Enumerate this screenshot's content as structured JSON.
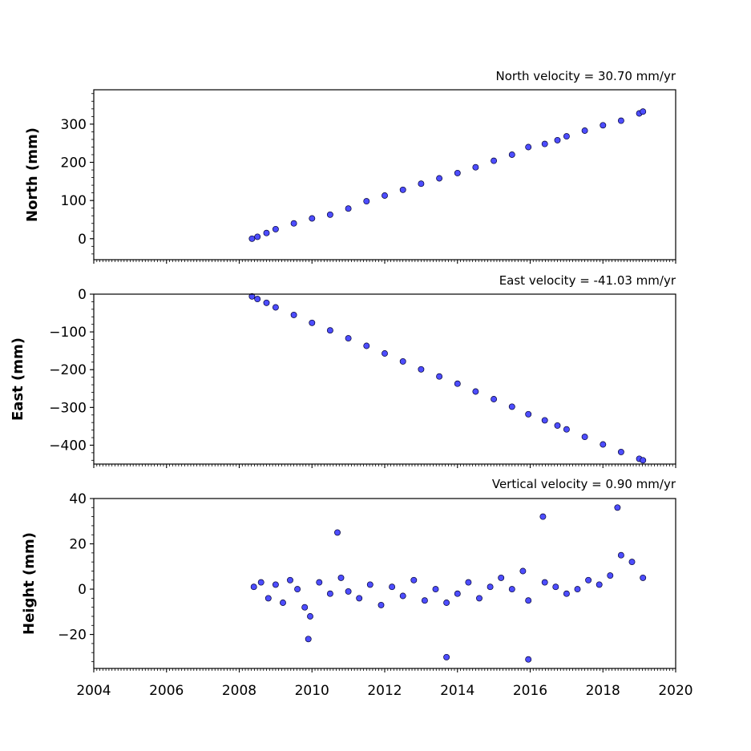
{
  "colors": {
    "marker_fill": "#4d4dff",
    "marker_edge": "#000033"
  },
  "chart_data": [
    {
      "type": "scatter",
      "title": "North velocity = 30.70 mm/yr",
      "ylabel": "North (mm)",
      "xlim": [
        2004,
        2020
      ],
      "ylim": [
        -55,
        390
      ],
      "yticks": [
        0,
        100,
        200,
        300
      ],
      "grid": false,
      "series": [
        {
          "x": [
            2008.35,
            2008.5,
            2008.75,
            2009.0,
            2009.5,
            2010.0,
            2010.5,
            2011.0,
            2011.5,
            2012.0,
            2012.5,
            2013.0,
            2013.5,
            2014.0,
            2014.5,
            2015.0,
            2015.5,
            2015.95,
            2016.4,
            2016.75,
            2017.0,
            2017.5,
            2018.0,
            2018.5,
            2019.0,
            2019.1
          ],
          "y": [
            0,
            5,
            15,
            25,
            40,
            53,
            63,
            79,
            98,
            113,
            128,
            144,
            158,
            172,
            187,
            204,
            220,
            240,
            248,
            258,
            268,
            283,
            297,
            309,
            328,
            333
          ]
        }
      ]
    },
    {
      "type": "scatter",
      "title": "East velocity = -41.03 mm/yr",
      "ylabel": "East (mm)",
      "xlim": [
        2004,
        2020
      ],
      "ylim": [
        -450,
        0
      ],
      "yticks": [
        0,
        -100,
        -200,
        -300,
        -400
      ],
      "grid": false,
      "series": [
        {
          "x": [
            2008.35,
            2008.5,
            2008.75,
            2009.0,
            2009.5,
            2010.0,
            2010.5,
            2011.0,
            2011.5,
            2012.0,
            2012.5,
            2013.0,
            2013.5,
            2014.0,
            2014.5,
            2015.0,
            2015.5,
            2015.95,
            2016.4,
            2016.75,
            2017.0,
            2017.5,
            2018.0,
            2018.5,
            2019.0,
            2019.1
          ],
          "y": [
            -6,
            -13,
            -23,
            -35,
            -55,
            -76,
            -96,
            -117,
            -137,
            -157,
            -178,
            -199,
            -218,
            -237,
            -258,
            -278,
            -298,
            -318,
            -334,
            -348,
            -358,
            -378,
            -398,
            -418,
            -436,
            -440
          ]
        }
      ]
    },
    {
      "type": "scatter",
      "title": "Vertical velocity = 0.90 mm/yr",
      "ylabel": "Height (mm)",
      "xlabel": "",
      "xlim": [
        2004,
        2020
      ],
      "ylim": [
        -35,
        40
      ],
      "yticks": [
        40,
        20,
        0,
        -20
      ],
      "xticks": [
        2004,
        2006,
        2008,
        2010,
        2012,
        2014,
        2016,
        2018,
        2020
      ],
      "grid": false,
      "series": [
        {
          "x": [
            2008.4,
            2008.6,
            2008.8,
            2009.0,
            2009.2,
            2009.4,
            2009.6,
            2009.8,
            2009.95,
            2010.2,
            2010.5,
            2010.8,
            2011.0,
            2011.3,
            2011.6,
            2011.9,
            2012.2,
            2012.5,
            2012.8,
            2013.1,
            2013.4,
            2013.7,
            2014.0,
            2014.3,
            2014.6,
            2014.9,
            2015.2,
            2015.5,
            2015.8,
            2015.95,
            2016.4,
            2016.7,
            2017.0,
            2017.3,
            2017.6,
            2017.9,
            2018.2,
            2018.5,
            2018.8,
            2019.1,
            2009.9,
            2010.7,
            2013.7,
            2015.95,
            2016.35,
            2018.4
          ],
          "y": [
            1,
            3,
            -4,
            2,
            -6,
            4,
            0,
            -8,
            -12,
            3,
            -2,
            5,
            -1,
            -4,
            2,
            -7,
            1,
            -3,
            4,
            -5,
            0,
            -6,
            -2,
            3,
            -4,
            1,
            5,
            0,
            8,
            -5,
            3,
            1,
            -2,
            0,
            4,
            2,
            6,
            15,
            12,
            5,
            -22,
            25,
            -30,
            -31,
            32,
            36
          ]
        }
      ]
    }
  ]
}
